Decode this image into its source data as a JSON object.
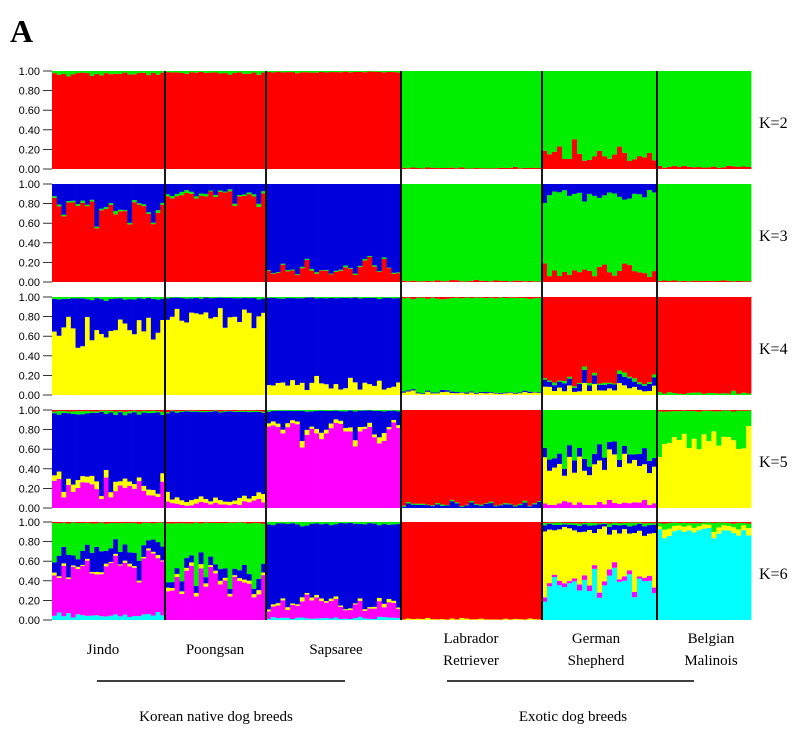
{
  "figure_label": "A",
  "colors": {
    "red": "#ff0000",
    "green": "#00ee00",
    "blue": "#0000dd",
    "yellow": "#ffff00",
    "magenta": "#ff00ff",
    "cyan": "#00ffff",
    "separator": "#000000",
    "background": "#ffffff"
  },
  "groups": [
    {
      "label": "Korean native dog breeds",
      "breeds": [
        "Jindo",
        "Poongsan",
        "Sapsaree"
      ]
    },
    {
      "label": "Exotic dog breeds",
      "breeds": [
        "Labrador Retriever",
        "German Shepherd",
        "Belgian Malinois"
      ]
    }
  ],
  "breed_labels": [
    {
      "line1": "Jindo",
      "line2": ""
    },
    {
      "line1": "Poongsan",
      "line2": ""
    },
    {
      "line1": "Sapsaree",
      "line2": ""
    },
    {
      "line1": "Labrador",
      "line2": "Retriever"
    },
    {
      "line1": "German",
      "line2": "Shepherd"
    },
    {
      "line1": "Belgian",
      "line2": "Malinois"
    }
  ],
  "chart_data": {
    "type": "stacked-bar",
    "description": "STRUCTURE admixture bar plots, one panel per K",
    "y_ticks": [
      "0.00",
      "0.20",
      "0.40",
      "0.60",
      "0.80",
      "1.00"
    ],
    "ylim": [
      0,
      1
    ],
    "breeds": [
      "Jindo",
      "Poongsan",
      "Sapsaree",
      "Labrador Retriever",
      "German Shepherd",
      "Belgian Malinois"
    ],
    "individuals_per_breed": [
      24,
      21,
      28,
      29,
      23,
      19
    ],
    "panels": [
      {
        "label": "K=2",
        "clusters": [
          "red",
          "green"
        ],
        "breed_mean_proportions": [
          [
            0.97,
            0.03
          ],
          [
            0.98,
            0.02
          ],
          [
            0.99,
            0.01
          ],
          [
            0.01,
            0.99
          ],
          [
            0.15,
            0.85
          ],
          [
            0.02,
            0.98
          ]
        ]
      },
      {
        "label": "K=3",
        "clusters": [
          "red",
          "green",
          "blue"
        ],
        "breed_mean_proportions": [
          [
            0.75,
            0.02,
            0.23
          ],
          [
            0.88,
            0.02,
            0.1
          ],
          [
            0.12,
            0.01,
            0.87
          ],
          [
            0.01,
            0.99,
            0.0
          ],
          [
            0.1,
            0.8,
            0.1
          ],
          [
            0.01,
            0.99,
            0.0
          ]
        ]
      },
      {
        "label": "K=4",
        "clusters": [
          "yellow",
          "blue",
          "green",
          "red"
        ],
        "breed_mean_proportions": [
          [
            0.68,
            0.3,
            0.02,
            0.0
          ],
          [
            0.82,
            0.17,
            0.01,
            0.0
          ],
          [
            0.1,
            0.89,
            0.01,
            0.0
          ],
          [
            0.02,
            0.01,
            0.96,
            0.01
          ],
          [
            0.06,
            0.07,
            0.02,
            0.85
          ],
          [
            0.0,
            0.0,
            0.02,
            0.98
          ]
        ]
      },
      {
        "label": "K=5",
        "clusters": [
          "magenta",
          "yellow",
          "blue",
          "green",
          "red"
        ],
        "breed_mean_proportions": [
          [
            0.18,
            0.05,
            0.74,
            0.02,
            0.01
          ],
          [
            0.05,
            0.05,
            0.88,
            0.01,
            0.01
          ],
          [
            0.78,
            0.04,
            0.17,
            0.01,
            0.0
          ],
          [
            0.0,
            0.0,
            0.03,
            0.01,
            0.96
          ],
          [
            0.05,
            0.4,
            0.1,
            0.45,
            0.0
          ],
          [
            0.0,
            0.72,
            0.0,
            0.27,
            0.01
          ]
        ]
      },
      {
        "label": "K=6",
        "clusters": [
          "cyan",
          "magenta",
          "yellow",
          "blue",
          "green",
          "red"
        ],
        "breed_mean_proportions": [
          [
            0.05,
            0.48,
            0.02,
            0.15,
            0.29,
            0.01
          ],
          [
            0.0,
            0.4,
            0.03,
            0.08,
            0.48,
            0.01
          ],
          [
            0.02,
            0.14,
            0.02,
            0.8,
            0.02,
            0.0
          ],
          [
            0.0,
            0.0,
            0.01,
            0.0,
            0.0,
            0.99
          ],
          [
            0.35,
            0.04,
            0.52,
            0.06,
            0.02,
            0.01
          ],
          [
            0.9,
            0.0,
            0.05,
            0.0,
            0.04,
            0.01
          ]
        ]
      }
    ]
  }
}
